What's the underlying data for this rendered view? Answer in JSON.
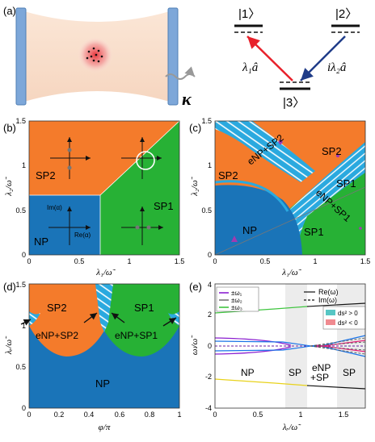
{
  "panel_a": {
    "label": "(a)",
    "loss_symbol": "κ",
    "levels": {
      "top_left": "|1〉",
      "top_right": "|2〉",
      "bottom": "|3〉"
    },
    "coupling_left": "λ₁â",
    "coupling_right": "iλ₂â",
    "colors": {
      "left_arrow": "#e8212b",
      "right_arrow": "#1f3c88",
      "mirror": "#7da7d9"
    }
  },
  "panel_b": {
    "label": "(b)",
    "xlabel": "λ₁/ω̃",
    "ylabel": "λ₂/ω̃",
    "xticks": [
      "0",
      "0.5",
      "1",
      "1.5"
    ],
    "yticks": [
      "0",
      "0.5",
      "1",
      "1.5"
    ],
    "regions": {
      "sp2": "SP2",
      "sp1": "SP1",
      "np": "NP"
    },
    "inset_labels": {
      "im": "Im(α)",
      "re": "Re(α)"
    }
  },
  "panel_c": {
    "label": "(c)",
    "xlabel": "λ₁/ω̃",
    "ylabel": "λ₂/ω̃",
    "xticks": [
      "0",
      "0.5",
      "1",
      "1.5"
    ],
    "yticks": [
      "0",
      "0.5",
      "1",
      "1.5"
    ],
    "regions": {
      "sp2_top": "SP2",
      "sp2_mid": "SP2",
      "sp1_right": "SP1",
      "sp1_low": "SP1",
      "np": "NP",
      "enp_sp2": "eNP+SP2",
      "enp_sp1": "eNP+SP1"
    }
  },
  "panel_d": {
    "label": "(d)",
    "xlabel": "φ/π",
    "ylabel": "λᵣ/ω̃",
    "xticks": [
      "0",
      "0.2",
      "0.4",
      "0.6",
      "0.8",
      "1"
    ],
    "yticks": [
      "0",
      "0.5",
      "1",
      "1.5"
    ],
    "regions": {
      "sp2": "SP2",
      "sp1": "SP1",
      "np": "NP",
      "enp_sp2": "eNP+SP2",
      "enp_sp1": "eNP+SP1"
    }
  },
  "panel_e": {
    "label": "(e)",
    "xlabel": "λᵣ/ω̃",
    "ylabel": "ωₗ/ω̃",
    "xticks": [
      "0",
      "0.5",
      "1",
      "1.5"
    ],
    "yticks": [
      "-4",
      "-2",
      "0",
      "2",
      "4"
    ],
    "legend1": [
      "±ω₁",
      "±ω₂",
      "±ω₃"
    ],
    "legend2": [
      "Re(ω)",
      "Im(ω)"
    ],
    "legend3": [
      "ds² > 0",
      "ds² < 0"
    ],
    "phase_labels": {
      "np": "NP",
      "sp_a": "SP",
      "enp": "eNP",
      "enp2": "+SP",
      "sp_b": "SP"
    }
  },
  "colors": {
    "orange": "#f47b2b",
    "green": "#27b135",
    "blue": "#1a74b8",
    "hatch": "#2aa9df"
  }
}
